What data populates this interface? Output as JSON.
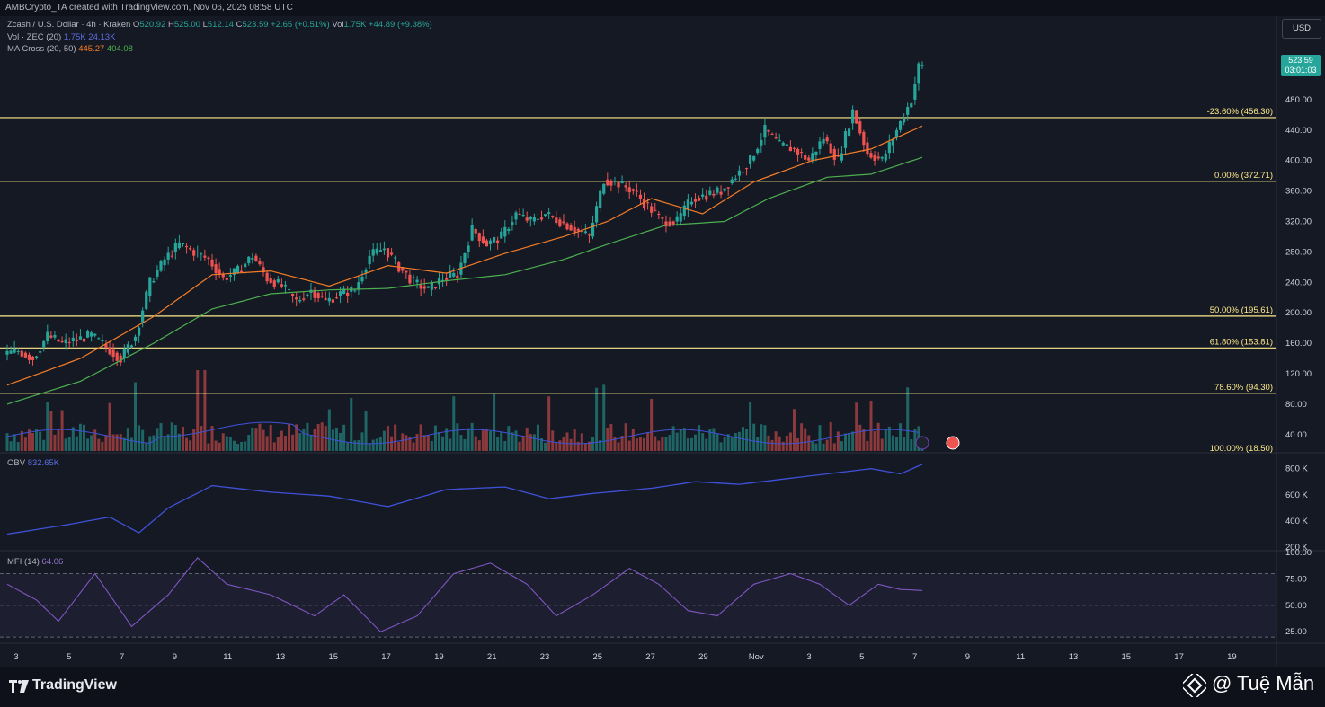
{
  "header": {
    "created_by": "AMBCrypto_TA created with TradingView.com, Nov 06, 2025 08:58 UTC"
  },
  "legend": {
    "symbol": "Zcash / U.S. Dollar · 4h · Kraken",
    "o_label": "O",
    "o_value": "520.92",
    "h_label": "H",
    "h_value": "525.00",
    "l_label": "L",
    "l_value": "512.14",
    "c_label": "C",
    "c_value": "523.59",
    "change": "+2.65 (+0.51%)",
    "vol_label": "Vol",
    "vol_value": "1.75K",
    "vol_change": "+44.89 (+9.38%)",
    "vol_ind_label": "Vol · ZEC (20)",
    "vol_ind_v1": "1.75K",
    "vol_ind_v2": "24.13K",
    "ma_label": "MA Cross (20, 50)",
    "ma_v1": "445.27",
    "ma_v2": "404.08",
    "obv_label": "OBV",
    "obv_value": "832.65K",
    "mfi_label": "MFI (14)",
    "mfi_value": "64.06"
  },
  "currency": "USD",
  "price_tag": {
    "price": "523.59",
    "countdown": "03:01:03"
  },
  "colors": {
    "bg": "#151924",
    "up": "#26a69a",
    "down": "#ef5350",
    "fib": "#ffeb8a",
    "ma20": "#f57c27",
    "ma50": "#4caf50",
    "obv": "#3f51d8",
    "mfi": "#7e57c2",
    "vol_ma": "#3f51d8"
  },
  "footer": {
    "brand": "TradingView",
    "watermark": "@ Tuệ Mẫn"
  },
  "chart_data": {
    "type": "candlestick",
    "title": "Zcash / U.S. Dollar · 4h · Kraken",
    "price_axis": {
      "ticks": [
        "480.00",
        "440.00",
        "400.00",
        "360.00",
        "320.00",
        "280.00",
        "240.00",
        "200.00",
        "160.00",
        "120.00",
        "80.00",
        "40.00"
      ],
      "range": [
        18.5,
        540
      ]
    },
    "x_ticks": [
      "3",
      "5",
      "7",
      "9",
      "11",
      "13",
      "15",
      "17",
      "19",
      "21",
      "23",
      "25",
      "27",
      "29",
      "Nov",
      "3",
      "5",
      "7",
      "9",
      "11",
      "13",
      "15",
      "17",
      "19"
    ],
    "fib_levels": [
      {
        "label": "-23.60% (456.30)",
        "price": 456.3
      },
      {
        "label": "0.00% (372.71)",
        "price": 372.71
      },
      {
        "label": "50.00% (195.61)",
        "price": 195.61
      },
      {
        "label": "61.80% (153.81)",
        "price": 153.81
      },
      {
        "label": "78.60% (94.30)",
        "price": 94.3
      },
      {
        "label": "100.00% (18.50)",
        "price": 18.5
      }
    ],
    "close_path": [
      [
        0,
        145
      ],
      [
        4,
        150
      ],
      [
        8,
        140
      ],
      [
        12,
        170
      ],
      [
        16,
        160
      ],
      [
        20,
        165
      ],
      [
        24,
        170
      ],
      [
        28,
        155
      ],
      [
        32,
        140
      ],
      [
        36,
        170
      ],
      [
        40,
        240
      ],
      [
        44,
        270
      ],
      [
        48,
        290
      ],
      [
        52,
        280
      ],
      [
        56,
        270
      ],
      [
        60,
        245
      ],
      [
        64,
        255
      ],
      [
        68,
        275
      ],
      [
        72,
        245
      ],
      [
        76,
        235
      ],
      [
        80,
        215
      ],
      [
        84,
        230
      ],
      [
        88,
        215
      ],
      [
        92,
        225
      ],
      [
        96,
        230
      ],
      [
        100,
        275
      ],
      [
        104,
        285
      ],
      [
        108,
        260
      ],
      [
        112,
        240
      ],
      [
        116,
        230
      ],
      [
        120,
        245
      ],
      [
        124,
        250
      ],
      [
        128,
        310
      ],
      [
        132,
        290
      ],
      [
        136,
        300
      ],
      [
        140,
        330
      ],
      [
        144,
        320
      ],
      [
        148,
        330
      ],
      [
        152,
        320
      ],
      [
        156,
        310
      ],
      [
        160,
        300
      ],
      [
        164,
        375
      ],
      [
        168,
        370
      ],
      [
        172,
        360
      ],
      [
        176,
        340
      ],
      [
        180,
        320
      ],
      [
        184,
        320
      ],
      [
        188,
        350
      ],
      [
        192,
        355
      ],
      [
        196,
        360
      ],
      [
        200,
        380
      ],
      [
        204,
        400
      ],
      [
        208,
        440
      ],
      [
        212,
        420
      ],
      [
        216,
        415
      ],
      [
        220,
        400
      ],
      [
        224,
        430
      ],
      [
        228,
        400
      ],
      [
        232,
        465
      ],
      [
        236,
        410
      ],
      [
        240,
        400
      ],
      [
        244,
        440
      ],
      [
        248,
        480
      ],
      [
        250,
        523.59
      ]
    ],
    "ma20_path": [
      [
        0,
        105
      ],
      [
        20,
        140
      ],
      [
        40,
        195
      ],
      [
        56,
        250
      ],
      [
        72,
        255
      ],
      [
        88,
        235
      ],
      [
        104,
        262
      ],
      [
        120,
        252
      ],
      [
        136,
        278
      ],
      [
        152,
        300
      ],
      [
        164,
        320
      ],
      [
        176,
        350
      ],
      [
        190,
        330
      ],
      [
        204,
        372
      ],
      [
        220,
        400
      ],
      [
        236,
        415
      ],
      [
        250,
        445.27
      ]
    ],
    "ma50_path": [
      [
        0,
        80
      ],
      [
        20,
        110
      ],
      [
        40,
        160
      ],
      [
        56,
        205
      ],
      [
        72,
        225
      ],
      [
        88,
        230
      ],
      [
        104,
        232
      ],
      [
        120,
        242
      ],
      [
        136,
        250
      ],
      [
        152,
        270
      ],
      [
        164,
        290
      ],
      [
        180,
        315
      ],
      [
        196,
        320
      ],
      [
        208,
        350
      ],
      [
        224,
        378
      ],
      [
        236,
        382
      ],
      [
        250,
        404.08
      ]
    ],
    "obv_axis": {
      "ticks": [
        "800 K",
        "600 K",
        "400 K",
        "200 K"
      ],
      "range": [
        180,
        880
      ]
    },
    "obv_path": [
      [
        0,
        300
      ],
      [
        16,
        370
      ],
      [
        28,
        430
      ],
      [
        36,
        310
      ],
      [
        44,
        500
      ],
      [
        56,
        670
      ],
      [
        72,
        620
      ],
      [
        88,
        590
      ],
      [
        104,
        510
      ],
      [
        120,
        640
      ],
      [
        136,
        660
      ],
      [
        148,
        570
      ],
      [
        160,
        610
      ],
      [
        176,
        650
      ],
      [
        188,
        700
      ],
      [
        200,
        680
      ],
      [
        212,
        720
      ],
      [
        224,
        760
      ],
      [
        236,
        800
      ],
      [
        244,
        760
      ],
      [
        250,
        832.65
      ]
    ],
    "mfi_axis": {
      "ticks": [
        "100.00",
        "75.00",
        "50.00",
        "25.00"
      ],
      "range": [
        15,
        100
      ],
      "bands": [
        80,
        50,
        20
      ]
    },
    "mfi_path": [
      [
        0,
        70
      ],
      [
        8,
        55
      ],
      [
        14,
        35
      ],
      [
        24,
        80
      ],
      [
        34,
        30
      ],
      [
        44,
        60
      ],
      [
        52,
        95
      ],
      [
        60,
        70
      ],
      [
        72,
        60
      ],
      [
        84,
        40
      ],
      [
        92,
        60
      ],
      [
        102,
        25
      ],
      [
        112,
        40
      ],
      [
        122,
        80
      ],
      [
        132,
        90
      ],
      [
        142,
        70
      ],
      [
        150,
        40
      ],
      [
        160,
        60
      ],
      [
        170,
        85
      ],
      [
        178,
        70
      ],
      [
        186,
        45
      ],
      [
        194,
        40
      ],
      [
        204,
        70
      ],
      [
        214,
        80
      ],
      [
        222,
        70
      ],
      [
        230,
        50
      ],
      [
        238,
        70
      ],
      [
        244,
        65
      ],
      [
        250,
        64.06
      ]
    ]
  }
}
